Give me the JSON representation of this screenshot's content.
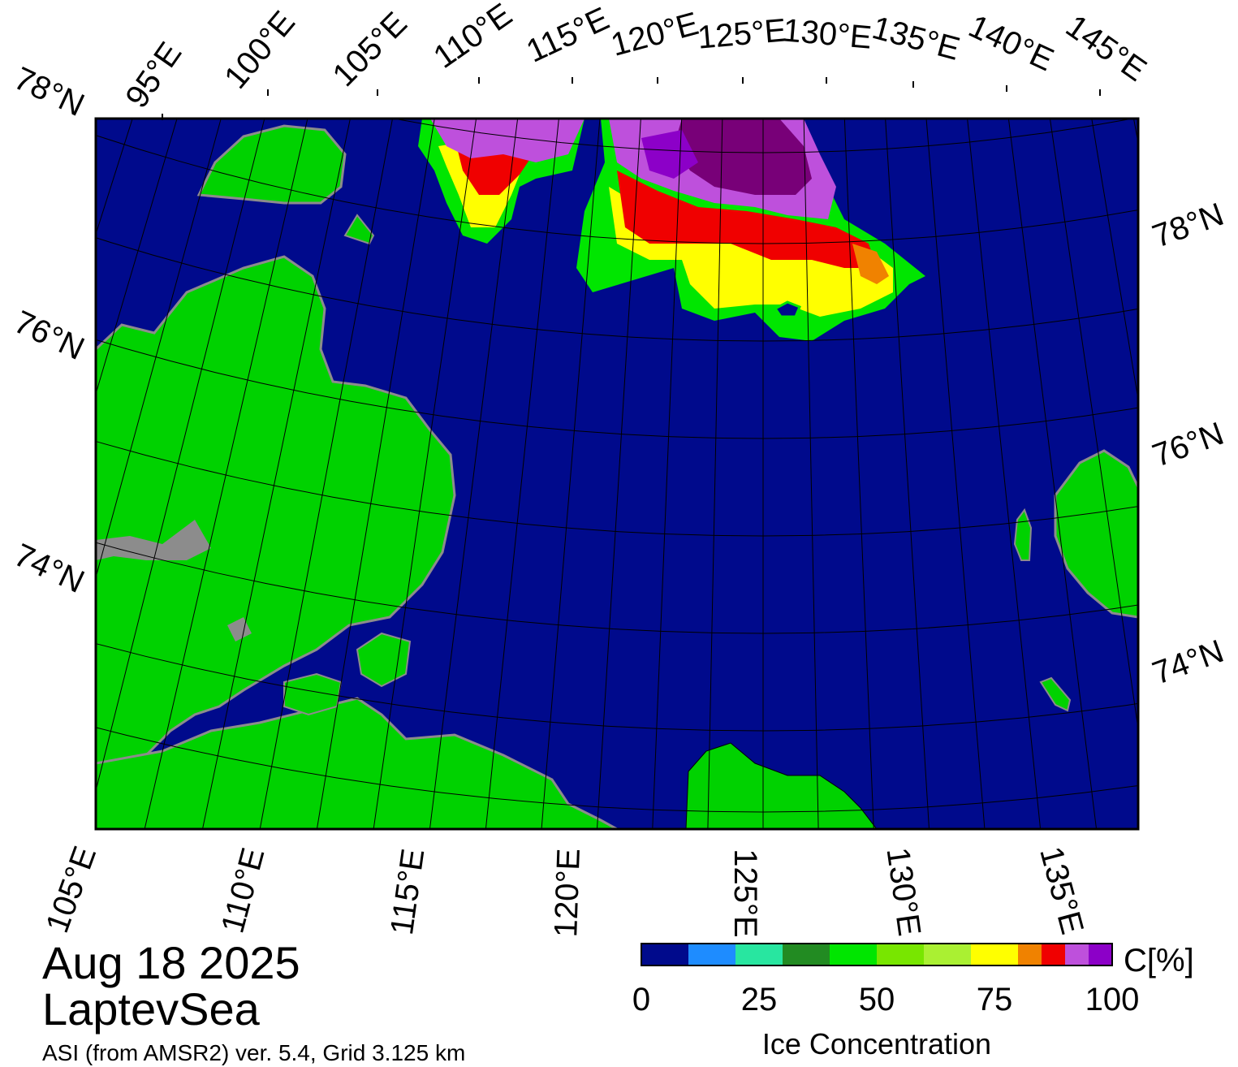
{
  "date": "Aug 18 2025",
  "region": "LaptevSea",
  "source": "ASI (from AMSR2) ver. 5.4,  Grid 3.125 km",
  "top_lon_labels": [
    "95°E",
    "100°E",
    "105°E",
    "110°E",
    "115°E",
    "120°E",
    "125°E",
    "130°E",
    "135°E",
    "140°E",
    "145°E"
  ],
  "bottom_lon_labels": [
    "105°E",
    "110°E",
    "115°E",
    "120°E",
    "125°E",
    "130°E",
    "135°E"
  ],
  "left_lat_labels": [
    "78°N",
    "76°N",
    "74°N"
  ],
  "right_lat_labels": [
    "78°N",
    "76°N",
    "74°N"
  ],
  "colorbar": {
    "unit_label": "C[%]",
    "title": "Ice Concentration",
    "ticks": [
      "0",
      "25",
      "50",
      "75",
      "100"
    ],
    "colors": [
      "#000a8c",
      "#1e8cff",
      "#28e6a0",
      "#228b22",
      "#00e600",
      "#78e600",
      "#aaf032",
      "#ffff00",
      "#f08200",
      "#f00000",
      "#be50dc",
      "#8c00c8",
      "#780078"
    ]
  },
  "map_colors": {
    "ocean": "#000a8c",
    "land": "#00d200",
    "land_ice": "#8c8c8c",
    "frame": "#000000",
    "graticule": "#000000"
  }
}
